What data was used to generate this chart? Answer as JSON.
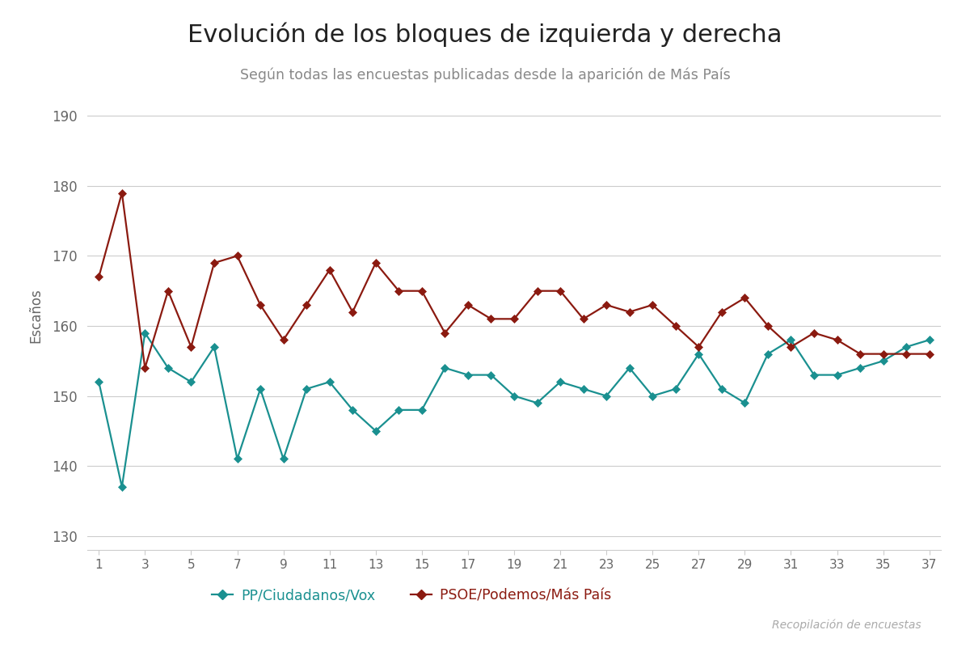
{
  "title": "Evolución de los bloques de izquierda y derecha",
  "subtitle": "Según todas las encuestas publicadas desde la aparición de Más País",
  "ylabel": "Escaños",
  "source": "Recopilación de encuestas",
  "xlim": [
    0.5,
    37.5
  ],
  "ylim": [
    128,
    195
  ],
  "yticks": [
    130,
    140,
    150,
    160,
    170,
    180,
    190
  ],
  "xticks": [
    1,
    3,
    5,
    7,
    9,
    11,
    13,
    15,
    17,
    19,
    21,
    23,
    25,
    27,
    29,
    31,
    33,
    35,
    37
  ],
  "left_color": "#1a9090",
  "right_color": "#8b1a10",
  "left_label": "PP/Ciudadanos/Vox",
  "right_label": "PSOE/Podemos/Más País",
  "background_color": "#ffffff",
  "grid_color": "#cccccc",
  "left_data": [
    152,
    137,
    159,
    154,
    152,
    157,
    141,
    151,
    141,
    151,
    152,
    148,
    145,
    148,
    148,
    154,
    153,
    153,
    150,
    149,
    152,
    151,
    150,
    154,
    150,
    151,
    156,
    151,
    149,
    156,
    158,
    153,
    153,
    154,
    155,
    157,
    158
  ],
  "right_data": [
    167,
    179,
    154,
    165,
    157,
    169,
    170,
    163,
    158,
    163,
    168,
    162,
    169,
    165,
    165,
    159,
    163,
    161,
    161,
    165,
    165,
    161,
    163,
    162,
    163,
    160,
    157,
    162,
    164,
    160,
    157,
    159,
    158,
    156,
    156,
    156,
    156
  ]
}
